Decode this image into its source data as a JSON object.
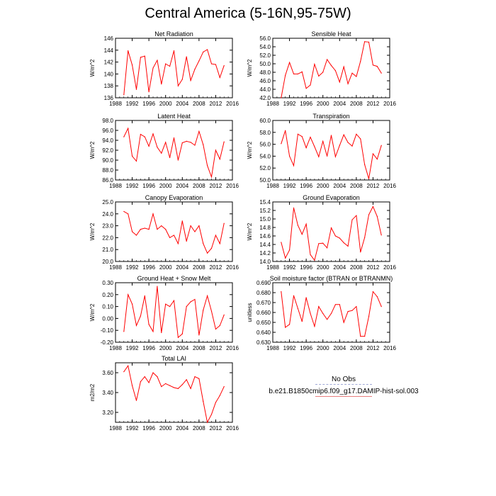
{
  "title": "Central America (5-16N,95-75W)",
  "legend": {
    "obs_label": "No Obs",
    "obs_color": "#9fa8d6",
    "model_label": "b.e21.B1850cmip6.f09_g17.DAMIP-hist-sol.003",
    "model_color": "#e87f7f"
  },
  "line_color": "#ff0000",
  "chart_data": [
    {
      "type": "line",
      "title": "Net Radiation",
      "ylabel": "W/m^2",
      "xlim": [
        1988,
        2016
      ],
      "xticks": [
        1988,
        1992,
        1996,
        2000,
        2004,
        2008,
        2012,
        2016
      ],
      "ylim": [
        136,
        146
      ],
      "yticks": [
        "136",
        "138",
        "140",
        "142",
        "144",
        "146"
      ],
      "x": [
        1990,
        1991,
        1992,
        1993,
        1994,
        1995,
        1996,
        1997,
        1998,
        1999,
        2000,
        2001,
        2002,
        2003,
        2004,
        2005,
        2006,
        2007,
        2008,
        2009,
        2010,
        2011,
        2012,
        2013,
        2014
      ],
      "y": [
        136.5,
        143.9,
        141.5,
        137.4,
        142.8,
        143.0,
        137.0,
        141.0,
        142.3,
        138.3,
        141.7,
        141.3,
        143.9,
        138.0,
        139.1,
        142.9,
        138.9,
        140.8,
        142.2,
        143.7,
        144.1,
        141.7,
        141.6,
        139.4,
        141.4
      ]
    },
    {
      "type": "line",
      "title": "Sensible Heat",
      "ylabel": "W/m^2",
      "xlim": [
        1988,
        2016
      ],
      "xticks": [
        1988,
        1992,
        1996,
        2000,
        2004,
        2008,
        2012,
        2016
      ],
      "ylim": [
        42,
        56
      ],
      "yticks": [
        "42.0",
        "44.0",
        "46.0",
        "48.0",
        "50.0",
        "52.0",
        "54.0",
        "56.0"
      ],
      "x": [
        1990,
        1991,
        1992,
        1993,
        1994,
        1995,
        1996,
        1997,
        1998,
        1999,
        2000,
        2001,
        2002,
        2003,
        2004,
        2005,
        2006,
        2007,
        2008,
        2009,
        2010,
        2011,
        2012,
        2013,
        2014
      ],
      "y": [
        42.0,
        47.3,
        50.3,
        47.6,
        47.6,
        48.1,
        44.2,
        45.0,
        49.9,
        47.1,
        48.0,
        51.0,
        49.6,
        48.4,
        45.7,
        49.3,
        45.3,
        47.8,
        47.0,
        50.6,
        55.2,
        55.1,
        49.7,
        49.4,
        47.8
      ]
    },
    {
      "type": "line",
      "title": "Latent Heat",
      "ylabel": "W/m^2",
      "xlim": [
        1988,
        2016
      ],
      "xticks": [
        1988,
        1992,
        1996,
        2000,
        2004,
        2008,
        2012,
        2016
      ],
      "ylim": [
        86,
        98
      ],
      "yticks": [
        "86.0",
        "88.0",
        "90.0",
        "92.0",
        "94.0",
        "96.0",
        "98.0"
      ],
      "x": [
        1990,
        1991,
        1992,
        1993,
        1994,
        1995,
        1996,
        1997,
        1998,
        1999,
        2000,
        2001,
        2002,
        2003,
        2004,
        2005,
        2006,
        2007,
        2008,
        2009,
        2010,
        2011,
        2012,
        2013,
        2014
      ],
      "y": [
        94.7,
        96.4,
        90.8,
        89.8,
        95.2,
        94.7,
        92.8,
        95.3,
        92.6,
        91.4,
        93.6,
        90.5,
        94.5,
        90.0,
        93.5,
        93.8,
        93.6,
        93.0,
        95.8,
        93.1,
        88.9,
        86.6,
        92.0,
        90.2,
        93.7
      ]
    },
    {
      "type": "line",
      "title": "Transpiration",
      "ylabel": "W/m^2",
      "xlim": [
        1988,
        2016
      ],
      "xticks": [
        1988,
        1992,
        1996,
        2000,
        2004,
        2008,
        2012,
        2016
      ],
      "ylim": [
        50,
        60
      ],
      "yticks": [
        "50.0",
        "52.0",
        "54.0",
        "56.0",
        "58.0",
        "60.0"
      ],
      "x": [
        1990,
        1991,
        1992,
        1993,
        1994,
        1995,
        1996,
        1997,
        1998,
        1999,
        2000,
        2001,
        2002,
        2003,
        2004,
        2005,
        2006,
        2007,
        2008,
        2009,
        2010,
        2011,
        2012,
        2013,
        2014
      ],
      "y": [
        56.1,
        58.3,
        54.0,
        52.4,
        57.7,
        57.3,
        55.4,
        57.2,
        55.6,
        53.9,
        56.5,
        54.0,
        57.5,
        53.9,
        55.8,
        57.6,
        56.3,
        55.7,
        57.7,
        56.9,
        52.6,
        50.2,
        54.4,
        53.5,
        55.8
      ]
    },
    {
      "type": "line",
      "title": "Canopy Evaporation",
      "ylabel": "W/m^2",
      "xlim": [
        1988,
        2016
      ],
      "xticks": [
        1988,
        1992,
        1996,
        2000,
        2004,
        2008,
        2012,
        2016
      ],
      "ylim": [
        20,
        25
      ],
      "yticks": [
        "20.0",
        "21.0",
        "22.0",
        "23.0",
        "24.0",
        "25.0"
      ],
      "x": [
        1990,
        1991,
        1992,
        1993,
        1994,
        1995,
        1996,
        1997,
        1998,
        1999,
        2000,
        2001,
        2002,
        2003,
        2004,
        2005,
        2006,
        2007,
        2008,
        2009,
        2010,
        2011,
        2012,
        2013,
        2014
      ],
      "y": [
        24.2,
        24.0,
        22.5,
        22.2,
        22.7,
        22.8,
        22.7,
        24.0,
        22.7,
        23.0,
        22.7,
        22.0,
        22.2,
        21.5,
        23.4,
        21.7,
        23.0,
        22.5,
        23.0,
        21.5,
        20.7,
        21.1,
        22.2,
        21.5,
        23.2
      ]
    },
    {
      "type": "line",
      "title": "Ground Evaporation",
      "ylabel": "W/m^2",
      "xlim": [
        1988,
        2016
      ],
      "xticks": [
        1988,
        1992,
        1996,
        2000,
        2004,
        2008,
        2012,
        2016
      ],
      "ylim": [
        14,
        15.4
      ],
      "yticks": [
        "14.0",
        "14.2",
        "14.4",
        "14.6",
        "14.8",
        "15.0",
        "15.2",
        "15.4"
      ],
      "x": [
        1990,
        1991,
        1992,
        1993,
        1994,
        1995,
        1996,
        1997,
        1998,
        1999,
        2000,
        2001,
        2002,
        2003,
        2004,
        2005,
        2006,
        2007,
        2008,
        2009,
        2010,
        2011,
        2012,
        2013,
        2014
      ],
      "y": [
        14.45,
        14.08,
        14.27,
        15.26,
        14.85,
        14.64,
        14.88,
        14.16,
        14.03,
        14.42,
        14.43,
        14.32,
        14.79,
        14.6,
        14.55,
        14.44,
        14.36,
        14.98,
        15.08,
        14.22,
        14.56,
        15.1,
        15.29,
        15.06,
        14.62
      ]
    },
    {
      "type": "line",
      "title": "Ground Heat + Snow Melt",
      "ylabel": "W/m^2",
      "xlim": [
        1988,
        2016
      ],
      "xticks": [
        1988,
        1992,
        1996,
        2000,
        2004,
        2008,
        2012,
        2016
      ],
      "ylim": [
        -0.2,
        0.3
      ],
      "yticks": [
        "-0.20",
        "-0.10",
        "0.00",
        "0.10",
        "0.20",
        "0.30"
      ],
      "x": [
        1990,
        1991,
        1992,
        1993,
        1994,
        1995,
        1996,
        1997,
        1998,
        1999,
        2000,
        2001,
        2002,
        2003,
        2004,
        2005,
        2006,
        2007,
        2008,
        2009,
        2010,
        2011,
        2012,
        2013,
        2014
      ],
      "y": [
        -0.11,
        0.2,
        0.12,
        -0.06,
        0.02,
        0.19,
        -0.05,
        -0.11,
        0.27,
        -0.12,
        0.12,
        0.1,
        0.15,
        -0.16,
        -0.13,
        0.1,
        0.14,
        0.16,
        -0.14,
        0.07,
        0.19,
        0.06,
        -0.09,
        -0.06,
        0.03
      ]
    },
    {
      "type": "line",
      "title": "Soil moisture factor (BTRAN or BTRANMN)",
      "ylabel": "unitless",
      "xlim": [
        1988,
        2016
      ],
      "xticks": [
        1988,
        1992,
        1996,
        2000,
        2004,
        2008,
        2012,
        2016
      ],
      "ylim": [
        0.63,
        0.69
      ],
      "yticks": [
        "0.630",
        "0.640",
        "0.650",
        "0.660",
        "0.670",
        "0.680",
        "0.690"
      ],
      "x": [
        1990,
        1991,
        1992,
        1993,
        1994,
        1995,
        1996,
        1997,
        1998,
        1999,
        2000,
        2001,
        2002,
        2003,
        2004,
        2005,
        2006,
        2007,
        2008,
        2009,
        2010,
        2011,
        2012,
        2013,
        2014
      ],
      "y": [
        0.681,
        0.645,
        0.648,
        0.677,
        0.664,
        0.651,
        0.675,
        0.659,
        0.646,
        0.666,
        0.659,
        0.653,
        0.659,
        0.668,
        0.668,
        0.65,
        0.661,
        0.662,
        0.666,
        0.636,
        0.636,
        0.656,
        0.681,
        0.676,
        0.666
      ]
    },
    {
      "type": "line",
      "title": "Total LAI",
      "ylabel": "m2/m2",
      "xlim": [
        1988,
        2016
      ],
      "xticks": [
        1988,
        1992,
        1996,
        2000,
        2004,
        2008,
        2012,
        2016
      ],
      "ylim": [
        3.1,
        3.7
      ],
      "yticks": [
        "3.20",
        "3.40",
        "3.60"
      ],
      "x": [
        1990,
        1991,
        1992,
        1993,
        1994,
        1995,
        1996,
        1997,
        1998,
        1999,
        2000,
        2001,
        2002,
        2003,
        2004,
        2005,
        2006,
        2007,
        2008,
        2009,
        2010,
        2011,
        2012,
        2013,
        2014
      ],
      "y": [
        3.61,
        3.67,
        3.47,
        3.32,
        3.51,
        3.56,
        3.5,
        3.6,
        3.56,
        3.46,
        3.49,
        3.47,
        3.45,
        3.44,
        3.48,
        3.53,
        3.44,
        3.56,
        3.54,
        3.31,
        3.1,
        3.18,
        3.3,
        3.37,
        3.46
      ]
    }
  ]
}
